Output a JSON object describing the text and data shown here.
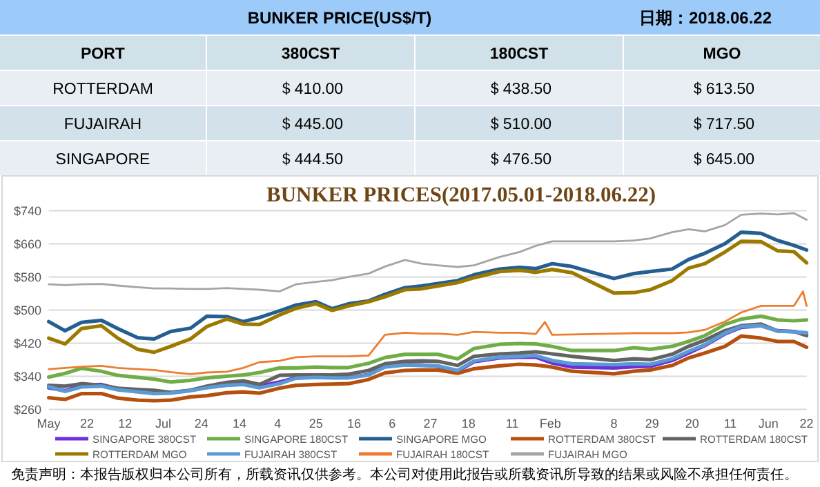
{
  "chart_data": [
    {
      "type": "other",
      "title": "BUNKER PRICE(US$/T)",
      "annotations": [
        "日期：2018.06.22"
      ],
      "ylabel": "PORT",
      "categories": [
        "380CST",
        "180CST",
        "MGO"
      ],
      "y_categories": [
        "ROTTERDAM",
        "FUJAIRAH",
        "SINGAPORE"
      ],
      "cell_labels": [
        [
          "＄410.00",
          "＄438.50",
          "＄613.50"
        ],
        [
          "＄445.00",
          "＄510.00",
          "＄717.50"
        ],
        [
          "＄444.50",
          "＄476.50",
          "＄645.00"
        ]
      ]
    },
    {
      "type": "line",
      "title": "BUNKER PRICES(2017.05.01-2018.06.22)",
      "grid": "y",
      "legend": "bottom",
      "xlim": [
        "2017-05-01",
        "2018-06-22"
      ],
      "ylim": [
        260,
        740
      ],
      "xticks": [
        {
          "value": "2017-05-01",
          "label": "May"
        },
        {
          "value": "2017-05-22",
          "label": "22"
        },
        {
          "value": "2017-06-12",
          "label": "12"
        },
        {
          "value": "2017-07-03",
          "label": "Jul"
        },
        {
          "value": "2017-07-24",
          "label": "24"
        },
        {
          "value": "2017-08-14",
          "label": "14"
        },
        {
          "value": "2017-09-04",
          "label": "4"
        },
        {
          "value": "2017-09-25",
          "label": "25"
        },
        {
          "value": "2017-10-16",
          "label": "16"
        },
        {
          "value": "2017-11-06",
          "label": "6"
        },
        {
          "value": "2017-11-27",
          "label": "27"
        },
        {
          "value": "2017-12-18",
          "label": "18"
        },
        {
          "value": "2018-01-11",
          "label": "11"
        },
        {
          "value": "2018-02-01",
          "label": "Feb"
        },
        {
          "value": "2018-03-08",
          "label": "8"
        },
        {
          "value": "2018-03-29",
          "label": "29"
        },
        {
          "value": "2018-04-20",
          "label": "20"
        },
        {
          "value": "2018-05-11",
          "label": "11"
        },
        {
          "value": "2018-06-01",
          "label": "Jun"
        },
        {
          "value": "2018-06-22",
          "label": "22"
        }
      ],
      "yticks": [
        {
          "value": 260,
          "label": "$260"
        },
        {
          "value": 340,
          "label": "$340"
        },
        {
          "value": 420,
          "label": "$420"
        },
        {
          "value": 500,
          "label": "$500"
        },
        {
          "value": 580,
          "label": "$580"
        },
        {
          "value": 660,
          "label": "$660"
        },
        {
          "value": 740,
          "label": "$740"
        }
      ],
      "x": [
        "2017-05-01",
        "2017-05-10",
        "2017-05-19",
        "2017-05-30",
        "2017-06-08",
        "2017-06-19",
        "2017-06-28",
        "2017-07-07",
        "2017-07-18",
        "2017-07-27",
        "2017-08-07",
        "2017-08-16",
        "2017-08-25",
        "2017-09-05",
        "2017-09-14",
        "2017-09-25",
        "2017-10-04",
        "2017-10-13",
        "2017-10-24",
        "2017-11-02",
        "2017-11-13",
        "2017-11-22",
        "2017-12-01",
        "2017-12-12",
        "2017-12-21",
        "2018-01-04",
        "2018-01-15",
        "2018-01-24",
        "2018-02-02",
        "2018-02-13",
        "2018-03-08",
        "2018-03-19",
        "2018-03-28",
        "2018-04-09",
        "2018-04-18",
        "2018-04-27",
        "2018-05-08",
        "2018-05-17",
        "2018-05-28",
        "2018-06-06",
        "2018-06-15",
        "2018-06-22"
      ],
      "series": [
        {
          "name": "SINGAPORE 380CST",
          "color": "#6f2fd8",
          "values": [
            312,
            305,
            318,
            320,
            310,
            305,
            302,
            300,
            306,
            314,
            320,
            324,
            316,
            326,
            336,
            338,
            337,
            337,
            344,
            364,
            368,
            367,
            364,
            352,
            375,
            384,
            386,
            386,
            372,
            362,
            360,
            363,
            364,
            378,
            396,
            414,
            442,
            458,
            462,
            450,
            448,
            444
          ]
        },
        {
          "name": "SINGAPORE 180CST",
          "color": "#70ad47",
          "values": [
            338,
            347,
            359,
            352,
            342,
            337,
            333,
            326,
            330,
            336,
            340,
            343,
            349,
            360,
            360,
            362,
            361,
            361,
            371,
            385,
            393,
            393,
            393,
            382,
            407,
            417,
            419,
            418,
            412,
            402,
            402,
            409,
            405,
            412,
            424,
            438,
            465,
            478,
            485,
            476,
            474,
            476
          ]
        },
        {
          "name": "SINGAPORE MGO",
          "color": "#255e91",
          "values": [
            472,
            450,
            470,
            475,
            455,
            433,
            430,
            448,
            456,
            485,
            484,
            472,
            482,
            498,
            512,
            520,
            503,
            515,
            522,
            538,
            554,
            558,
            564,
            571,
            585,
            599,
            603,
            600,
            612,
            605,
            576,
            588,
            593,
            599,
            622,
            637,
            660,
            688,
            685,
            668,
            656,
            645
          ]
        },
        {
          "name": "ROTTERDAM 380CST",
          "color": "#b5500e",
          "values": [
            288,
            284,
            298,
            298,
            287,
            282,
            281,
            282,
            290,
            293,
            300,
            302,
            299,
            311,
            318,
            320,
            321,
            322,
            332,
            348,
            354,
            355,
            355,
            347,
            358,
            365,
            369,
            367,
            362,
            352,
            346,
            352,
            355,
            366,
            384,
            396,
            412,
            437,
            432,
            424,
            424,
            410
          ]
        },
        {
          "name": "ROTTERDAM 180CST",
          "color": "#636363",
          "values": [
            318,
            316,
            322,
            318,
            311,
            308,
            306,
            301,
            306,
            316,
            325,
            329,
            320,
            342,
            343,
            343,
            343,
            345,
            354,
            370,
            376,
            377,
            376,
            366,
            388,
            394,
            396,
            399,
            394,
            388,
            378,
            382,
            380,
            393,
            412,
            427,
            450,
            462,
            466,
            449,
            448,
            438
          ]
        },
        {
          "name": "ROTTERDAM MGO",
          "color": "#9c7a00",
          "values": [
            432,
            418,
            455,
            462,
            432,
            405,
            398,
            412,
            430,
            460,
            478,
            466,
            465,
            488,
            504,
            515,
            499,
            510,
            520,
            532,
            549,
            551,
            558,
            566,
            578,
            593,
            596,
            591,
            598,
            590,
            541,
            542,
            549,
            571,
            601,
            612,
            640,
            666,
            665,
            643,
            641,
            614
          ]
        },
        {
          "name": "FUJAIRAH 380CST",
          "color": "#5b9bd5",
          "values": [
            315,
            303,
            314,
            316,
            307,
            302,
            298,
            299,
            305,
            312,
            318,
            320,
            312,
            322,
            335,
            337,
            336,
            336,
            343,
            362,
            367,
            366,
            365,
            354,
            377,
            386,
            388,
            390,
            378,
            370,
            368,
            370,
            369,
            382,
            400,
            416,
            444,
            460,
            462,
            449,
            447,
            445
          ]
        },
        {
          "name": "FUJAIRAH 180CST",
          "color": "#ed7d31",
          "x": [
            "2017-05-01",
            "2017-05-10",
            "2017-05-19",
            "2017-05-30",
            "2017-06-08",
            "2017-06-19",
            "2017-06-28",
            "2017-07-07",
            "2017-07-18",
            "2017-07-27",
            "2017-08-07",
            "2017-08-16",
            "2017-08-25",
            "2017-09-05",
            "2017-09-14",
            "2017-09-25",
            "2017-10-04",
            "2017-10-13",
            "2017-10-24",
            "2017-11-02",
            "2017-11-13",
            "2017-11-22",
            "2017-12-01",
            "2017-12-12",
            "2017-12-21",
            "2018-01-04",
            "2018-01-15",
            "2018-01-24",
            "2018-01-29",
            "2018-02-02",
            "2018-02-13",
            "2018-03-08",
            "2018-03-19",
            "2018-03-28",
            "2018-04-09",
            "2018-04-18",
            "2018-04-27",
            "2018-05-08",
            "2018-05-17",
            "2018-05-28",
            "2018-06-06",
            "2018-06-15",
            "2018-06-20",
            "2018-06-22"
          ],
          "values": [
            357,
            360,
            363,
            365,
            360,
            357,
            355,
            350,
            345,
            349,
            351,
            360,
            374,
            377,
            386,
            388,
            388,
            388,
            390,
            440,
            445,
            443,
            443,
            440,
            447,
            445,
            445,
            442,
            471,
            440,
            441,
            443,
            444,
            444,
            444,
            446,
            452,
            472,
            494,
            510,
            510,
            510,
            545,
            510
          ]
        },
        {
          "name": "FUJAIRAH MGO",
          "color": "#a5a5a5",
          "values": [
            562,
            560,
            562,
            563,
            559,
            555,
            552,
            552,
            551,
            551,
            553,
            551,
            549,
            545,
            562,
            568,
            572,
            580,
            588,
            605,
            621,
            612,
            608,
            604,
            608,
            628,
            640,
            655,
            666,
            666,
            666,
            668,
            673,
            688,
            695,
            690,
            705,
            730,
            733,
            731,
            734,
            718
          ]
        }
      ],
      "annotations": [
        "免责声明：本报告版权归本公司所有，所载资讯仅供参考。本公司对使用此报告或所载资讯所导致的结果或风险不承担任何责任。"
      ]
    }
  ]
}
